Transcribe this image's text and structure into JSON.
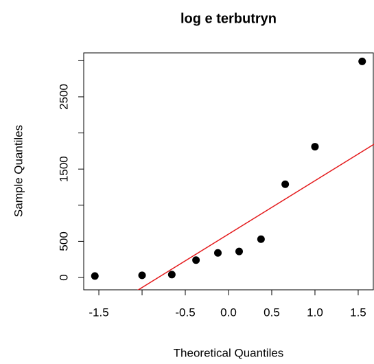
{
  "chart_data": {
    "type": "scatter",
    "title": "log e terbutryn",
    "x_label": "Theoretical Quantiles",
    "y_label": "Sample Quantiles",
    "x": [
      -1.546,
      -1.0,
      -0.656,
      -0.376,
      -0.123,
      0.123,
      0.376,
      0.656,
      1.0,
      1.546
    ],
    "values": [
      20,
      30,
      40,
      240,
      340,
      360,
      530,
      1290,
      1810,
      2990
    ],
    "color": "#000000",
    "xlim": [
      -1.675,
      1.683
    ],
    "ylim": [
      -171,
      3108
    ],
    "xticks": [
      -1.5,
      {
        "value": -1.0,
        "label": null
      },
      -0.5,
      {
        "value": 0.0,
        "label": "0.0"
      },
      0.5,
      {
        "value": 1.0,
        "label": "1.0"
      },
      1.5
    ],
    "yticks": [
      0,
      500,
      {
        "value": 1000,
        "label": null
      },
      1500,
      {
        "value": 2000,
        "label": null
      },
      2500,
      {
        "value": 3000,
        "label": null
      }
    ],
    "reference_line": {
      "intercept": 600,
      "slope": 739,
      "color": "#e41a1c"
    }
  }
}
